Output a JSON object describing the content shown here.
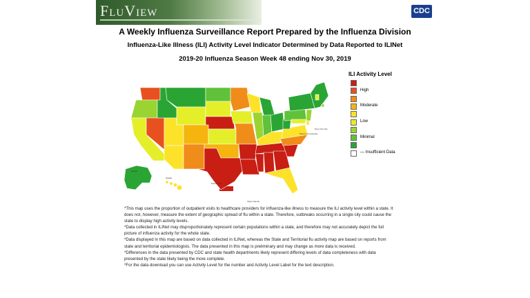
{
  "header": {
    "logo_text": "FluView",
    "cdc_text": "CDC"
  },
  "titles": {
    "main": "A Weekly Influenza Surveillance Report Prepared by the Influenza Division",
    "sub": "Influenza-Like Illness (ILI) Activity Level Indicator Determined by Data Reported to ILINet",
    "period": "2019-20 Influenza Season Week 48 ending Nov 30, 2019"
  },
  "legend": {
    "title": "ILI Activity Level",
    "levels": [
      {
        "color": "#c81e14"
      },
      {
        "color": "#e8511f",
        "label": "High"
      },
      {
        "color": "#f08c1a"
      },
      {
        "color": "#f6b40e",
        "label": "Moderate"
      },
      {
        "color": "#fde22a"
      },
      {
        "color": "#e4ef2a",
        "label": "Low"
      },
      {
        "color": "#9ad432"
      },
      {
        "color": "#5fc23a",
        "label": "Minimal"
      },
      {
        "color": "#2aa534"
      },
      {
        "color": "#ffffff",
        "label": "Insufficient Data"
      }
    ]
  },
  "map_labels": {
    "new_york_city": "New York City",
    "district_of_columbia": "District of Columbia",
    "alaska": "Alaska",
    "hawaii": "Hawaii",
    "puerto_rico": "Puerto Rico",
    "virgin_islands": "Virgin Islands"
  },
  "notes": [
    "*This map uses the proportion of outpatient visits to healthcare providers for influenza-like illness to measure the ILI activity level within a state. It does not, however, measure the extent of geographic spread of flu within a state. Therefore, outbreaks occurring in a single city could cause the state to display high activity levels.",
    "*Data collected in ILINet may disproportionately represent certain populations within a state, and therefore may not accurately depict the full picture of influenza activity for the whole state.",
    "*Data displayed in this map are based on data collected in ILINet, whereas the State and Territorial flu activity map are based on reports from state and territorial epidemiologists. The data presented in this map is preliminary and may change as more data is received.",
    "*Differences in the data presented by CDC and state health departments likely represent differing levels of data completeness with data presented by the state likely being the more complete.",
    "*For the data download you can use Activity Level for the number and Activity Level Label for the text description."
  ]
}
